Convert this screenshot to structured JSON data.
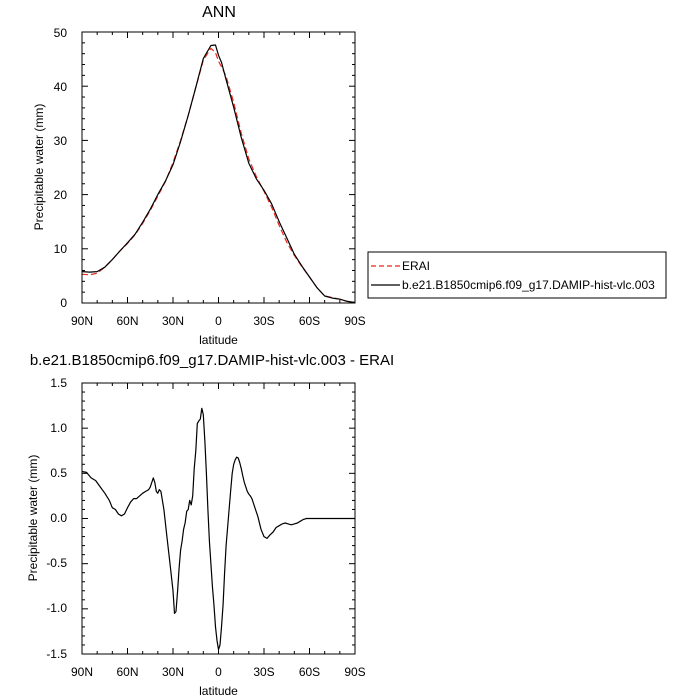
{
  "chart_data": [
    {
      "type": "line",
      "title": "ANN",
      "xlabel": "latitude",
      "ylabel": "Precipitable water (mm)",
      "x_ticks": [
        "90N",
        "60N",
        "30N",
        "0",
        "30S",
        "60S",
        "90S"
      ],
      "xlim": [
        90,
        -90
      ],
      "ylim": [
        0,
        50
      ],
      "y_ticks": [
        "0",
        "10",
        "20",
        "30",
        "40",
        "50"
      ],
      "y_tick_values": [
        0,
        10,
        20,
        30,
        40,
        50
      ],
      "legend_position": "right",
      "series": [
        {
          "name": "ERAI",
          "color": "#e8281e",
          "style": "dashed",
          "x": [
            90,
            85,
            80,
            75,
            70,
            65,
            60,
            55,
            50,
            45,
            40,
            35,
            30,
            25,
            20,
            15,
            10,
            5,
            2,
            0,
            -2,
            -5,
            -10,
            -15,
            -20,
            -25,
            -30,
            -35,
            -40,
            -45,
            -50,
            -55,
            -60,
            -65,
            -70,
            -75,
            -80,
            -85,
            -90
          ],
          "y": [
            5.3,
            5.2,
            5.5,
            6.6,
            8.0,
            9.6,
            11.0,
            12.6,
            14.7,
            17.1,
            19.7,
            22.4,
            25.9,
            30.0,
            34.6,
            39.8,
            44.8,
            47.0,
            46.2,
            44.6,
            43.6,
            41.8,
            37.0,
            31.3,
            26.6,
            23.3,
            20.6,
            17.7,
            14.3,
            11.2,
            8.8,
            6.7,
            4.8,
            2.8,
            1.3,
            1.0,
            0.7,
            0.3,
            0.1
          ]
        },
        {
          "name": "b.e21.B1850cmip6.f09_g17.DAMIP-hist-vlc.003",
          "color": "#000000",
          "style": "solid",
          "x": [
            90,
            85,
            80,
            75,
            70,
            65,
            60,
            55,
            50,
            45,
            40,
            35,
            30,
            25,
            20,
            15,
            10,
            5,
            2,
            0,
            -2,
            -5,
            -10,
            -15,
            -20,
            -25,
            -30,
            -35,
            -40,
            -45,
            -50,
            -55,
            -60,
            -65,
            -70,
            -75,
            -80,
            -85,
            -90
          ],
          "y": [
            5.8,
            5.7,
            5.8,
            6.6,
            8.0,
            9.6,
            11.1,
            12.7,
            14.9,
            17.3,
            20.0,
            22.5,
            25.5,
            29.8,
            34.6,
            39.8,
            45.1,
            47.5,
            47.6,
            45.7,
            44.4,
            41.2,
            36.1,
            30.5,
            25.8,
            22.9,
            20.8,
            18.3,
            15.0,
            12.0,
            9.0,
            6.8,
            4.8,
            2.8,
            1.3,
            0.9,
            0.7,
            0.3,
            0.1
          ]
        }
      ]
    },
    {
      "type": "line",
      "title": "b.e21.B1850cmip6.f09_g17.DAMIP-hist-vlc.003 - ERAI",
      "xlabel": "latitude",
      "ylabel": "Precipitable water (mm)",
      "x_ticks": [
        "90N",
        "60N",
        "30N",
        "0",
        "30S",
        "60S",
        "90S"
      ],
      "xlim": [
        90,
        -90
      ],
      "ylim": [
        -1.5,
        1.5
      ],
      "y_ticks": [
        "1.5",
        "1.0",
        "0.5",
        "0.0",
        "-0.5",
        "-1.0",
        "-1.5"
      ],
      "y_tick_values": [
        1.5,
        1.0,
        0.5,
        0.0,
        -0.5,
        -1.0,
        -1.5
      ],
      "series": [
        {
          "name": "",
          "color": "#000000",
          "style": "solid",
          "x": [
            90,
            87,
            84,
            81,
            78,
            75,
            72,
            70,
            68,
            66,
            64,
            62,
            60,
            58,
            56,
            54,
            52,
            50,
            48,
            46,
            45,
            44,
            43,
            42,
            41,
            40,
            39,
            38,
            36,
            34,
            32,
            31,
            30,
            29,
            28,
            27,
            26,
            25,
            24,
            23,
            22,
            21,
            20,
            19,
            18,
            17,
            16,
            15,
            14,
            13,
            12,
            11,
            10,
            9,
            8,
            7,
            6,
            5,
            4,
            3,
            2,
            1,
            0,
            -1,
            -2,
            -3,
            -4,
            -5,
            -6,
            -7,
            -8,
            -9,
            -10,
            -11,
            -12,
            -13,
            -14,
            -15,
            -16,
            -17,
            -18,
            -19,
            -20,
            -21,
            -22,
            -24,
            -26,
            -28,
            -30,
            -32,
            -34,
            -36,
            -38,
            -40,
            -42,
            -44,
            -46,
            -48,
            -50,
            -52,
            -54,
            -56,
            -58,
            -60,
            -62,
            -64,
            -66,
            -68,
            -70,
            -72,
            -74,
            -76,
            -78,
            -80,
            -82,
            -84,
            -86,
            -88,
            -90
          ],
          "y": [
            0.52,
            0.51,
            0.45,
            0.42,
            0.35,
            0.28,
            0.2,
            0.12,
            0.1,
            0.05,
            0.03,
            0.05,
            0.12,
            0.18,
            0.22,
            0.22,
            0.25,
            0.28,
            0.3,
            0.32,
            0.35,
            0.4,
            0.45,
            0.4,
            0.3,
            0.28,
            0.32,
            0.3,
            0.1,
            -0.2,
            -0.5,
            -0.65,
            -0.8,
            -1.05,
            -1.03,
            -0.8,
            -0.55,
            -0.35,
            -0.25,
            -0.12,
            -0.05,
            0.08,
            0.1,
            0.2,
            0.15,
            0.25,
            0.55,
            0.75,
            1.05,
            1.08,
            1.1,
            1.22,
            1.15,
            0.85,
            0.5,
            0.1,
            -0.25,
            -0.5,
            -0.75,
            -0.95,
            -1.2,
            -1.35,
            -1.45,
            -1.4,
            -1.2,
            -0.95,
            -0.6,
            -0.3,
            -0.1,
            0.1,
            0.3,
            0.5,
            0.6,
            0.65,
            0.68,
            0.67,
            0.62,
            0.55,
            0.47,
            0.4,
            0.35,
            0.3,
            0.27,
            0.25,
            0.22,
            0.12,
            0.02,
            -0.12,
            -0.2,
            -0.22,
            -0.18,
            -0.15,
            -0.1,
            -0.08,
            -0.06,
            -0.05,
            -0.06,
            -0.07,
            -0.06,
            -0.05,
            -0.03,
            -0.01,
            0.0,
            0.0,
            0.0,
            0.0,
            0.0,
            0.0,
            0.0,
            0.0,
            0.0,
            0.0,
            0.0,
            0.0,
            0.0,
            0.0,
            0.0,
            0.0,
            0.0
          ]
        }
      ]
    }
  ]
}
